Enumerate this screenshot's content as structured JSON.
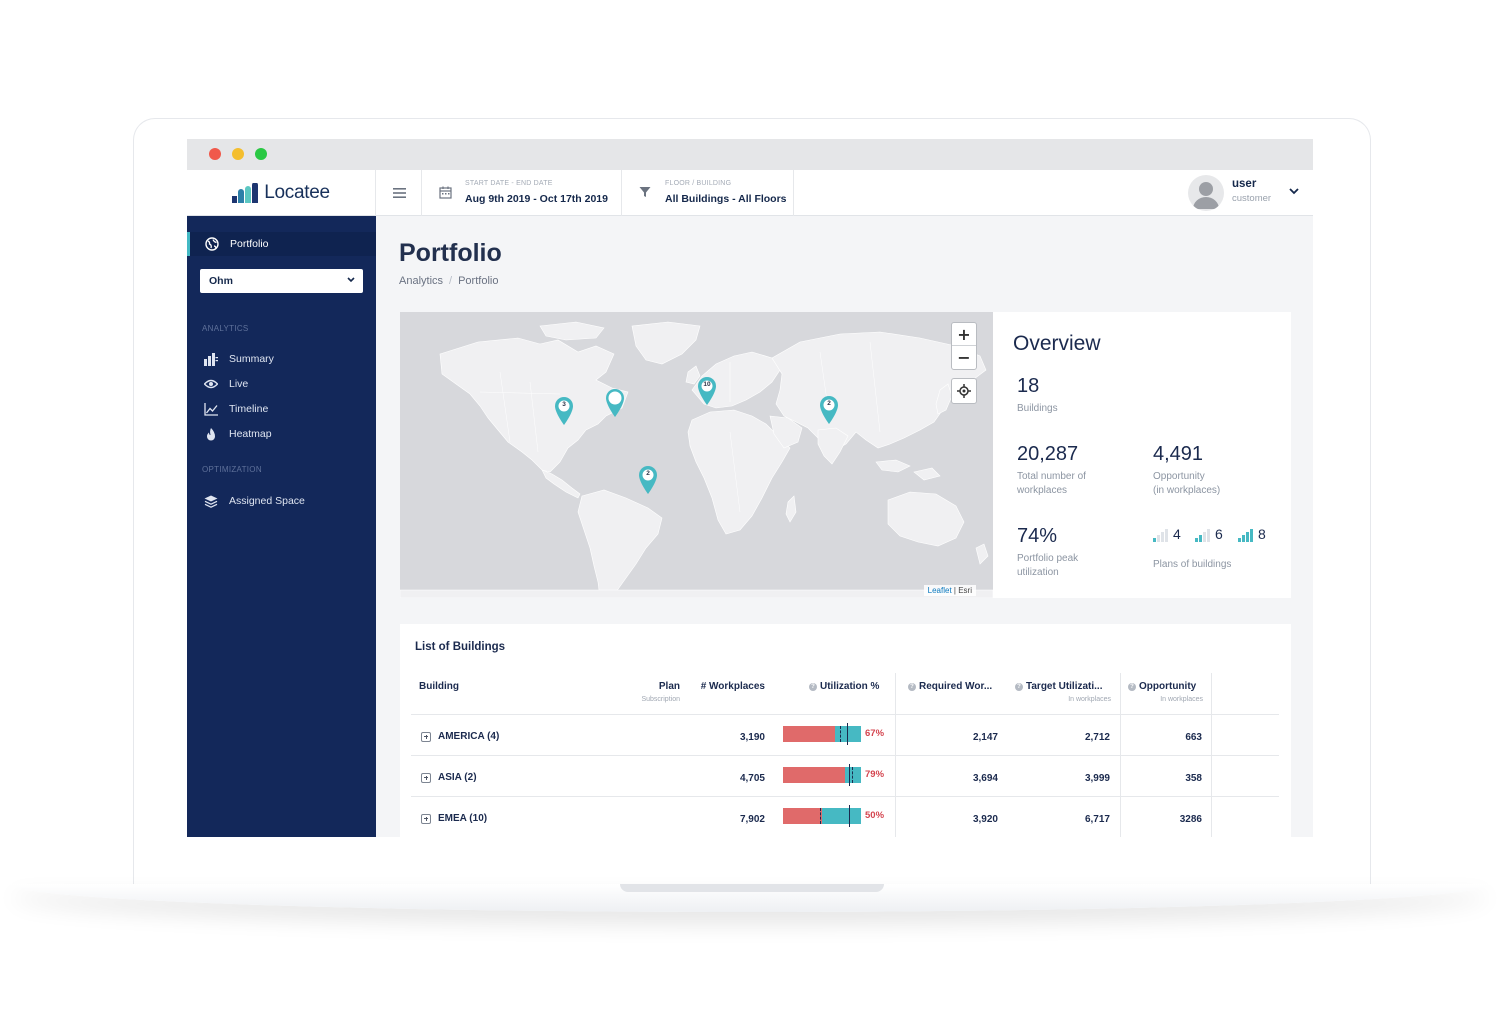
{
  "window": {
    "controls": [
      "close",
      "minimize",
      "maximize"
    ]
  },
  "brand": {
    "name": "Locatee",
    "colors": [
      "#1d3570",
      "#2d7fa8",
      "#5cc7c2"
    ]
  },
  "header": {
    "menu_icon": "hamburger-icon",
    "date_filter": {
      "label": "START DATE - END DATE",
      "value": "Aug 9th 2019 - Oct 17th 2019",
      "icon": "calendar-icon"
    },
    "floor_filter": {
      "label": "FLOOR / BUILDING",
      "value": "All Buildings - All Floors",
      "icon": "filter-icon"
    },
    "user": {
      "name": "user",
      "role": "customer"
    }
  },
  "sidebar": {
    "active": {
      "label": "Portfolio",
      "icon": "globe-icon"
    },
    "select": {
      "value": "Ohm"
    },
    "sections": [
      {
        "title": "ANALYTICS",
        "items": [
          {
            "label": "Summary",
            "icon": "summary-icon"
          },
          {
            "label": "Live",
            "icon": "eye-icon"
          },
          {
            "label": "Timeline",
            "icon": "line-chart-icon"
          },
          {
            "label": "Heatmap",
            "icon": "flame-icon"
          }
        ]
      },
      {
        "title": "OPTIMIZATION",
        "items": [
          {
            "label": "Assigned Space",
            "icon": "layers-icon"
          }
        ]
      }
    ]
  },
  "page": {
    "title": "Portfolio",
    "breadcrumb": [
      "Analytics",
      "Portfolio"
    ]
  },
  "map": {
    "zoom_in": "+",
    "zoom_out": "−",
    "attribution_link": "Leaflet",
    "attribution_sep": "|",
    "attribution_source": "Esri",
    "markers": [
      {
        "label": "3",
        "region": "US West"
      },
      {
        "label": "",
        "region": "US East"
      },
      {
        "label": "10",
        "region": "Europe"
      },
      {
        "label": "2",
        "region": "East Asia"
      },
      {
        "label": "2",
        "region": "South America"
      }
    ],
    "accent": "#46b9c3"
  },
  "overview": {
    "title": "Overview",
    "buildings": {
      "value": "18",
      "label": "Buildings"
    },
    "workplaces": {
      "value": "20,287",
      "label_1": "Total number of",
      "label_2": "workplaces"
    },
    "opportunity": {
      "value": "4,491",
      "label_1": "Opportunity",
      "label_2": "(in workplaces)"
    },
    "peak": {
      "value": "74%",
      "label_1": "Portfolio peak",
      "label_2": "utilization"
    },
    "plans": {
      "values": [
        "4",
        "6",
        "8"
      ],
      "label": "Plans of buildings"
    }
  },
  "buildings_table": {
    "title": "List of Buildings",
    "columns": {
      "building": "Building",
      "plan": "Plan",
      "plan_sub": "Subscription",
      "workplaces": "# Workplaces",
      "utilization": "Utilization %",
      "required": "Required Wor...",
      "target": "Target Utilizati...",
      "target_sub": "In workplaces",
      "opportunity": "Opportunity",
      "opportunity_sub": "In workplaces"
    },
    "rows": [
      {
        "name": "AMERICA (4)",
        "workplaces": "3,190",
        "utilization_pct": "67%",
        "utilization": 67,
        "required": "2,147",
        "target": "2,712",
        "opportunity": "663"
      },
      {
        "name": "ASIA (2)",
        "workplaces": "4,705",
        "utilization_pct": "79%",
        "utilization": 79,
        "required": "3,694",
        "target": "3,999",
        "opportunity": "358"
      },
      {
        "name": "EMEA (10)",
        "workplaces": "7,902",
        "utilization_pct": "50%",
        "utilization": 50,
        "required": "3,920",
        "target": "6,717",
        "opportunity": "3286"
      }
    ],
    "colors": {
      "used": "#e06a6a",
      "free": "#46b9c3",
      "pct": "#d4454f"
    }
  }
}
